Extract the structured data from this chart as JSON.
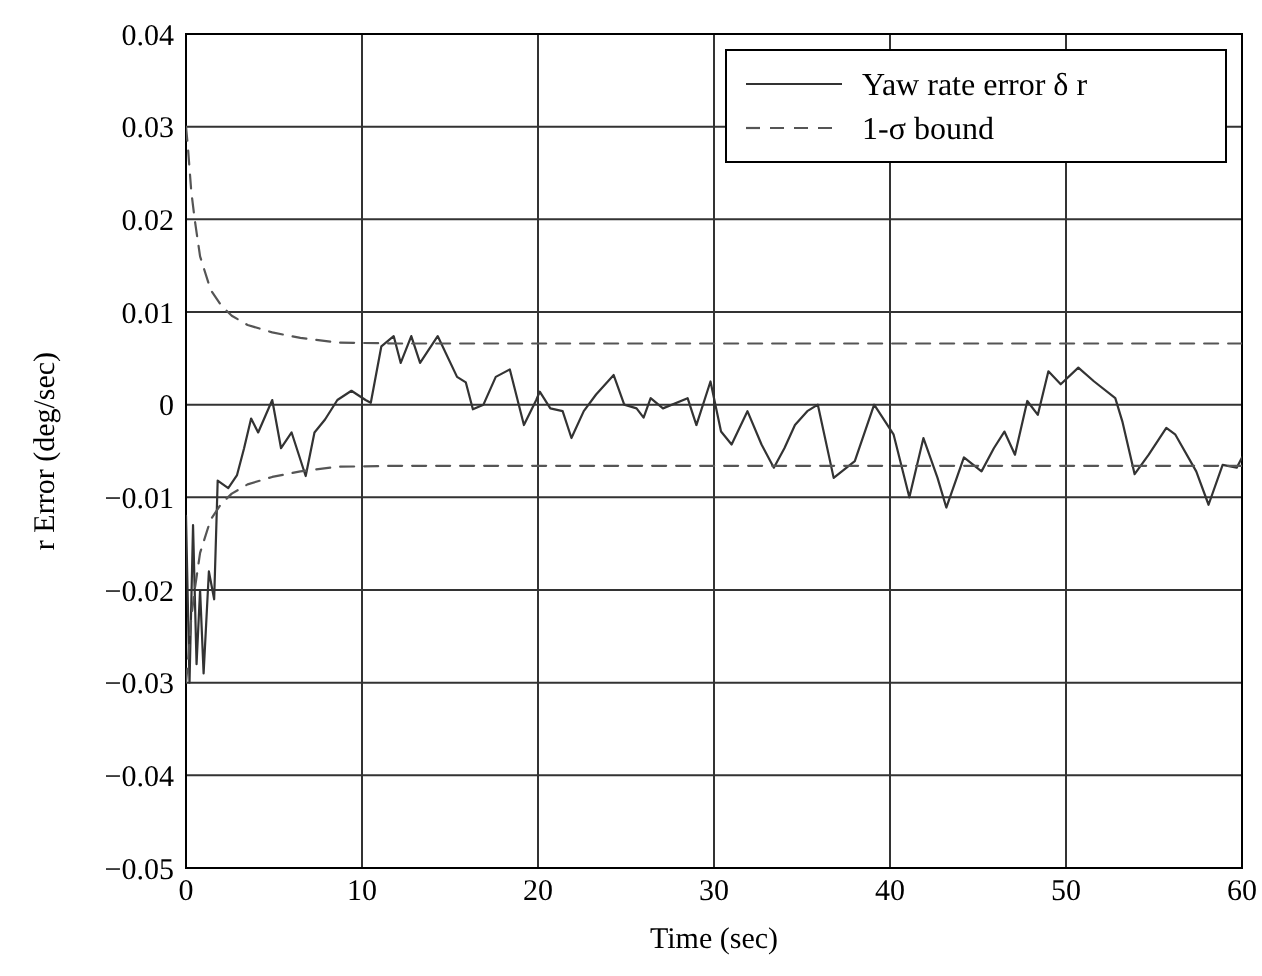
{
  "chart_data": {
    "type": "line",
    "xlabel": "Time (sec)",
    "ylabel": "r Error (deg/sec)",
    "xlim": [
      0,
      60
    ],
    "ylim": [
      -0.05,
      0.04
    ],
    "xticks": [
      0,
      10,
      20,
      30,
      40,
      50,
      60
    ],
    "yticks": [
      {
        "value": -0.05,
        "label": "−0.05"
      },
      {
        "value": -0.04,
        "label": "−0.04"
      },
      {
        "value": -0.03,
        "label": "−0.03"
      },
      {
        "value": -0.02,
        "label": "−0.02"
      },
      {
        "value": -0.01,
        "label": "−0.01"
      },
      0,
      0.01,
      0.02,
      0.03,
      0.04
    ],
    "grid": true,
    "legend": "top right",
    "series": [
      {
        "name": "Yaw rate error δ r",
        "color": "#333333",
        "line_style": "solid",
        "x": [
          0,
          0.2,
          0.4,
          0.6,
          0.8,
          1.0,
          1.3,
          1.6,
          1.8,
          2.4,
          2.9,
          3.3,
          3.7,
          4.1,
          4.9,
          5.4,
          6.0,
          6.8,
          7.3,
          7.9,
          8.6,
          9.4,
          10.2,
          10.5,
          11.1,
          11.8,
          12.2,
          12.8,
          13.3,
          14.3,
          15.4,
          15.9,
          16.3,
          16.9,
          17.6,
          18.4,
          19.2,
          19.9,
          20.1,
          20.7,
          21.4,
          21.9,
          22.6,
          23.3,
          24.3,
          24.9,
          25.6,
          26,
          26.4,
          27.1,
          28.5,
          29,
          29.8,
          30.4,
          31,
          31.9,
          32.7,
          33.4,
          34,
          34.6,
          35.3,
          35.9,
          36.8,
          38,
          38.7,
          39.1,
          40.2,
          41.1,
          41.9,
          42.7,
          43.2,
          44.2,
          45.2,
          45.9,
          46.5,
          47.1,
          47.8,
          48.4,
          49,
          49.7,
          50.7,
          51.6,
          52.8,
          53.2,
          53.9,
          54.7,
          55.7,
          56.2,
          57.4,
          58.1,
          58.9,
          59.7,
          60
        ],
        "values": [
          -0.012,
          -0.03,
          -0.013,
          -0.028,
          -0.02,
          -0.029,
          -0.018,
          -0.021,
          -0.0082,
          -0.009,
          -0.0076,
          -0.0047,
          -0.0015,
          -0.003,
          0.0005,
          -0.0047,
          -0.003,
          -0.0077,
          -0.003,
          -0.0016,
          0.0005,
          0.0015,
          0.0005,
          0.0002,
          0.0063,
          0.0074,
          0.0045,
          0.0074,
          0.0045,
          0.0074,
          0.003,
          0.0024,
          -0.0005,
          0,
          0.003,
          0.0038,
          -0.0022,
          0.0005,
          0.0014,
          -0.0004,
          -0.0007,
          -0.0036,
          -0.0007,
          0.0011,
          0.0032,
          0,
          -0.0004,
          -0.0014,
          0.0007,
          -0.0004,
          0.0007,
          -0.0022,
          0.0025,
          -0.0029,
          -0.0043,
          -0.0007,
          -0.0043,
          -0.0068,
          -0.0047,
          -0.0022,
          -0.0007,
          0,
          -0.0079,
          -0.0061,
          -0.0022,
          0,
          -0.0032,
          -0.01,
          -0.0036,
          -0.0079,
          -0.0111,
          -0.0057,
          -0.0072,
          -0.0047,
          -0.0029,
          -0.0054,
          0.0004,
          -0.0011,
          0.0036,
          0.0022,
          0.004,
          0.0025,
          0.0007,
          -0.0018,
          -0.0075,
          -0.0054,
          -0.0025,
          -0.0032,
          -0.0072,
          -0.0108,
          -0.0065,
          -0.0068,
          -0.0057
        ]
      },
      {
        "name": "1-σ bound",
        "color": "#555555",
        "line_style": "dashed",
        "x": [
          0,
          0.1,
          0.3,
          0.5,
          0.8,
          1.4,
          2,
          2.6,
          3.5,
          4.9,
          6.5,
          8.6,
          12,
          60
        ],
        "values": [
          0.03,
          0.028,
          0.023,
          0.0199,
          0.016,
          0.0124,
          0.0107,
          0.0096,
          0.0086,
          0.0078,
          0.0072,
          0.0067,
          0.0066,
          0.0066
        ]
      },
      {
        "color": "#555555",
        "line_style": "dashed",
        "x": [
          0,
          0.1,
          0.3,
          0.5,
          0.8,
          1.4,
          2,
          2.6,
          3.5,
          4.9,
          6.5,
          8.6,
          12,
          60
        ],
        "values": [
          -0.03,
          -0.028,
          -0.023,
          -0.0199,
          -0.016,
          -0.0124,
          -0.0107,
          -0.0096,
          -0.0086,
          -0.0078,
          -0.0072,
          -0.0067,
          -0.0066,
          -0.0066
        ]
      }
    ]
  }
}
